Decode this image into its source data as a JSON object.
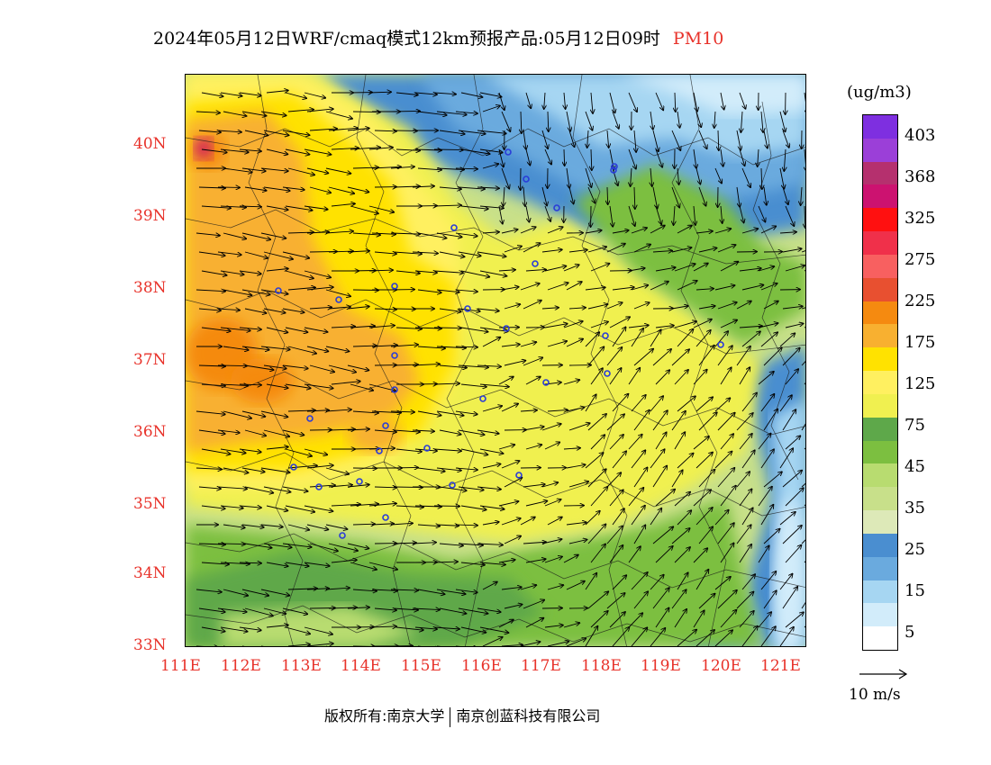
{
  "title": {
    "main": "2024年05月12日WRF/cmaq模式12km预报产品:05月12日09时",
    "variable": "PM10"
  },
  "axes": {
    "lat_labels": [
      "40N",
      "39N",
      "38N",
      "37N",
      "36N",
      "35N",
      "34N",
      "33N"
    ],
    "lon_labels": [
      "111E",
      "112E",
      "113E",
      "114E",
      "115E",
      "116E",
      "117E",
      "118E",
      "119E",
      "120E",
      "121E"
    ]
  },
  "legend": {
    "unit": "(ug/m3)",
    "labels": [
      "403",
      "368",
      "325",
      "275",
      "225",
      "175",
      "125",
      "75",
      "45",
      "35",
      "25",
      "15",
      "5"
    ],
    "colors": [
      "#7e2fe0",
      "#9b3fd8",
      "#b5306e",
      "#cc1270",
      "#ff1010",
      "#f0304a",
      "#f86060",
      "#e85030",
      "#f58a10",
      "#f8b030",
      "#ffe200",
      "#fff060",
      "#f0f050",
      "#5ea84a",
      "#7cbf40",
      "#b8dc70",
      "#c8e08a",
      "#dde9b8",
      "#4a8ed0",
      "#6aaade",
      "#a6d6f2",
      "#d2ecfa",
      "#ffffff"
    ]
  },
  "wind_reference": "10 m/s",
  "credit": {
    "left": "版权所有:南京大学",
    "right": "南京创蓝科技有限公司"
  },
  "map": {
    "lat_range": [
      33,
      41
    ],
    "lon_range": [
      111,
      121.4
    ],
    "concentration_colors": {
      "white": "#ffffff",
      "pale_blue": "#d2ecfa",
      "light_blue": "#a6d6f2",
      "mid_blue": "#6aaade",
      "blue": "#4a8ed0",
      "pale_green": "#dde9b8",
      "light_green": "#c8e08a",
      "green": "#b8dc70",
      "mid_green": "#7cbf40",
      "dark_green": "#5ea84a",
      "yellow": "#f0f050",
      "light_yellow": "#fff060",
      "gold": "#ffe200",
      "light_orange": "#f8b030",
      "orange": "#f58a10",
      "red": "#cc1270"
    },
    "station_color": "#2a3cd8"
  }
}
